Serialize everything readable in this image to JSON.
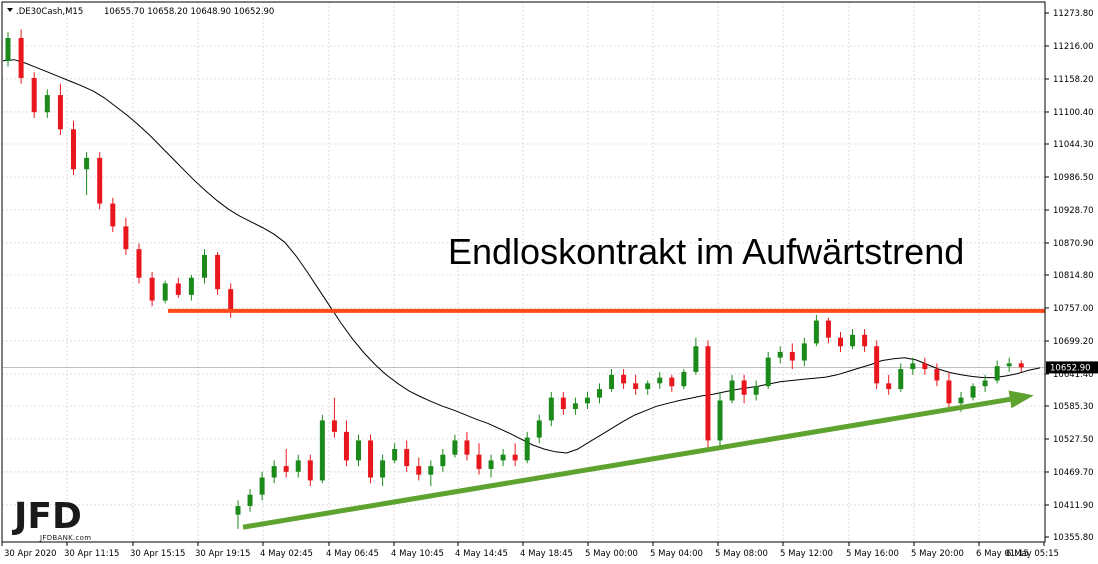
{
  "header": {
    "symbol": ".DE30Cash,M15",
    "ohlc": "10655.70 10658.20 10648.90 10652.90"
  },
  "annotation": "Endloskontrakt im Aufwärtstrend",
  "logo": {
    "text": "JFD",
    "subtext": "JFDBANK.com"
  },
  "current_price": {
    "label": "10652.90",
    "value": 10652.9,
    "color": "#000000"
  },
  "colors": {
    "bull": "#1b8a1b",
    "bear": "#e8161d",
    "ma": "#000000",
    "resistance": "#ff4a1c",
    "trend": "#5ea22f",
    "grid": "#c8c8c8",
    "frame": "#000000"
  },
  "chart_data": {
    "type": "candlestick",
    "title": "",
    "xlabel": "",
    "ylabel": "",
    "grid": true,
    "ylim": [
      10355.8,
      11273.8
    ],
    "y_ticks": [
      "11273.80",
      "11216.00",
      "11158.20",
      "11100.40",
      "11044.30",
      "10986.50",
      "10928.70",
      "10870.90",
      "10814.80",
      "10757.00",
      "10699.20",
      "10641.40",
      "10585.30",
      "10527.50",
      "10469.70",
      "10411.90",
      "10355.80"
    ],
    "y_tick_values": [
      11273.8,
      11216.0,
      11158.2,
      11100.4,
      11044.3,
      10986.5,
      10928.7,
      10870.9,
      10814.8,
      10757.0,
      10699.2,
      10641.4,
      10585.3,
      10527.5,
      10469.7,
      10411.9,
      10355.8
    ],
    "x_ticks": [
      "30 Apr 2020",
      "30 Apr 11:15",
      "30 Apr 15:15",
      "30 Apr 19:15",
      "4 May 02:45",
      "4 May 06:45",
      "4 May 10:45",
      "4 May 14:45",
      "4 May 18:45",
      "5 May 00:00",
      "5 May 04:00",
      "5 May 08:00",
      "5 May 12:00",
      "5 May 16:00",
      "5 May 20:00",
      "6 May 01:15",
      "6 May 05:15"
    ],
    "resistance_level": 10752,
    "trendline": {
      "start": [
        "4 May 00:00",
        10373
      ],
      "end": [
        "6 May 05:15",
        10597
      ]
    },
    "moving_average": [
      [
        0,
        11190
      ],
      [
        1,
        11192
      ],
      [
        2,
        11186
      ],
      [
        3,
        11178
      ],
      [
        4,
        11170
      ],
      [
        5,
        11162
      ],
      [
        6,
        11154
      ],
      [
        7,
        11146
      ],
      [
        8,
        11137
      ],
      [
        9,
        11125
      ],
      [
        10,
        11110
      ],
      [
        11,
        11095
      ],
      [
        12,
        11078
      ],
      [
        13,
        11060
      ],
      [
        14,
        11040
      ],
      [
        15,
        11020
      ],
      [
        16,
        11000
      ],
      [
        17,
        10980
      ],
      [
        18,
        10962
      ],
      [
        19,
        10945
      ],
      [
        20,
        10930
      ],
      [
        21,
        10918
      ],
      [
        22,
        10908
      ],
      [
        23,
        10898
      ],
      [
        24,
        10887
      ],
      [
        25,
        10872
      ],
      [
        26,
        10848
      ],
      [
        27,
        10820
      ],
      [
        28,
        10790
      ],
      [
        29,
        10760
      ],
      [
        30,
        10730
      ],
      [
        31,
        10703
      ],
      [
        32,
        10679
      ],
      [
        33,
        10658
      ],
      [
        34,
        10640
      ],
      [
        35,
        10625
      ],
      [
        36,
        10612
      ],
      [
        37,
        10602
      ],
      [
        38,
        10593
      ],
      [
        39,
        10585
      ],
      [
        40,
        10578
      ],
      [
        41,
        10570
      ],
      [
        42,
        10562
      ],
      [
        43,
        10555
      ],
      [
        44,
        10546
      ],
      [
        45,
        10537
      ],
      [
        46,
        10527
      ],
      [
        47,
        10517
      ],
      [
        48,
        10510
      ],
      [
        49,
        10505
      ],
      [
        50,
        10503
      ],
      [
        51,
        10510
      ],
      [
        52,
        10522
      ],
      [
        53,
        10534
      ],
      [
        54,
        10546
      ],
      [
        55,
        10558
      ],
      [
        56,
        10569
      ],
      [
        57,
        10577
      ],
      [
        58,
        10585
      ],
      [
        59,
        10590
      ],
      [
        60,
        10595
      ],
      [
        61,
        10599
      ],
      [
        62,
        10603
      ],
      [
        63,
        10606
      ],
      [
        64,
        10610
      ],
      [
        65,
        10614
      ],
      [
        66,
        10617
      ],
      [
        67,
        10620
      ],
      [
        68,
        10624
      ],
      [
        69,
        10628
      ],
      [
        70,
        10630
      ],
      [
        71,
        10632
      ],
      [
        72,
        10634
      ],
      [
        73,
        10636
      ],
      [
        74,
        10640
      ],
      [
        75,
        10646
      ],
      [
        76,
        10652
      ],
      [
        77,
        10658
      ],
      [
        78,
        10665
      ],
      [
        79,
        10668
      ],
      [
        80,
        10670
      ],
      [
        81,
        10666
      ],
      [
        82,
        10658
      ],
      [
        83,
        10650
      ],
      [
        84,
        10644
      ],
      [
        85,
        10640
      ],
      [
        86,
        10637
      ],
      [
        87,
        10635
      ],
      [
        88,
        10635
      ],
      [
        89,
        10638
      ],
      [
        90,
        10642
      ],
      [
        91,
        10648
      ],
      [
        92,
        10652
      ]
    ],
    "candles": [
      [
        0,
        11190,
        11240,
        11180,
        11230
      ],
      [
        1,
        11230,
        11245,
        11150,
        11160
      ],
      [
        2,
        11160,
        11170,
        11090,
        11100
      ],
      [
        3,
        11100,
        11140,
        11090,
        11130
      ],
      [
        4,
        11130,
        11150,
        11060,
        11070
      ],
      [
        5,
        11070,
        11085,
        10990,
        11000
      ],
      [
        6,
        11000,
        11030,
        10955,
        11020
      ],
      [
        7,
        11020,
        11030,
        10930,
        10940
      ],
      [
        8,
        10940,
        10950,
        10890,
        10900
      ],
      [
        9,
        10900,
        10915,
        10850,
        10860
      ],
      [
        10,
        10860,
        10870,
        10800,
        10810
      ],
      [
        11,
        10810,
        10820,
        10760,
        10770
      ],
      [
        12,
        10770,
        10805,
        10765,
        10800
      ],
      [
        13,
        10800,
        10810,
        10775,
        10780
      ],
      [
        14,
        10780,
        10815,
        10770,
        10810
      ],
      [
        15,
        10810,
        10860,
        10800,
        10850
      ],
      [
        16,
        10850,
        10855,
        10780,
        10790
      ],
      [
        17,
        10790,
        10800,
        10740,
        10750
      ],
      [
        18,
        10395,
        10420,
        10370,
        10410
      ],
      [
        19,
        10410,
        10440,
        10400,
        10430
      ],
      [
        20,
        10430,
        10470,
        10420,
        10460
      ],
      [
        21,
        10460,
        10490,
        10450,
        10480
      ],
      [
        22,
        10480,
        10510,
        10460,
        10470
      ],
      [
        23,
        10470,
        10500,
        10460,
        10490
      ],
      [
        24,
        10490,
        10500,
        10445,
        10455
      ],
      [
        25,
        10455,
        10570,
        10450,
        10560
      ],
      [
        26,
        10560,
        10600,
        10530,
        10540
      ],
      [
        27,
        10540,
        10560,
        10480,
        10490
      ],
      [
        28,
        10490,
        10535,
        10480,
        10525
      ],
      [
        29,
        10525,
        10535,
        10450,
        10460
      ],
      [
        30,
        10460,
        10500,
        10445,
        10490
      ],
      [
        31,
        10490,
        10520,
        10485,
        10510
      ],
      [
        32,
        10510,
        10525,
        10470,
        10480
      ],
      [
        33,
        10480,
        10495,
        10455,
        10465
      ],
      [
        34,
        10465,
        10490,
        10445,
        10480
      ],
      [
        35,
        10480,
        10510,
        10470,
        10500
      ],
      [
        36,
        10500,
        10535,
        10495,
        10525
      ],
      [
        37,
        10525,
        10540,
        10490,
        10500
      ],
      [
        38,
        10500,
        10520,
        10465,
        10475
      ],
      [
        39,
        10475,
        10500,
        10460,
        10490
      ],
      [
        40,
        10490,
        10510,
        10480,
        10500
      ],
      [
        41,
        10500,
        10520,
        10480,
        10490
      ],
      [
        42,
        10490,
        10540,
        10485,
        10530
      ],
      [
        43,
        10530,
        10570,
        10520,
        10560
      ],
      [
        44,
        10560,
        10610,
        10550,
        10600
      ],
      [
        45,
        10600,
        10610,
        10570,
        10580
      ],
      [
        46,
        10580,
        10600,
        10570,
        10590
      ],
      [
        47,
        10590,
        10610,
        10580,
        10600
      ],
      [
        48,
        10600,
        10625,
        10590,
        10615
      ],
      [
        49,
        10615,
        10650,
        10610,
        10640
      ],
      [
        50,
        10640,
        10650,
        10615,
        10625
      ],
      [
        51,
        10625,
        10640,
        10605,
        10615
      ],
      [
        52,
        10615,
        10630,
        10605,
        10625
      ],
      [
        53,
        10625,
        10645,
        10615,
        10635
      ],
      [
        54,
        10635,
        10640,
        10610,
        10620
      ],
      [
        55,
        10620,
        10650,
        10615,
        10645
      ],
      [
        56,
        10645,
        10705,
        10640,
        10690
      ],
      [
        57,
        10690,
        10700,
        10510,
        10525
      ],
      [
        58,
        10525,
        10610,
        10515,
        10595
      ],
      [
        59,
        10595,
        10640,
        10590,
        10630
      ],
      [
        60,
        10630,
        10640,
        10590,
        10605
      ],
      [
        61,
        10605,
        10630,
        10595,
        10620
      ],
      [
        62,
        10620,
        10680,
        10615,
        10670
      ],
      [
        63,
        10670,
        10690,
        10660,
        10680
      ],
      [
        64,
        10680,
        10695,
        10650,
        10665
      ],
      [
        65,
        10665,
        10705,
        10655,
        10695
      ],
      [
        66,
        10695,
        10745,
        10690,
        10735
      ],
      [
        67,
        10735,
        10740,
        10695,
        10705
      ],
      [
        68,
        10705,
        10715,
        10680,
        10690
      ],
      [
        69,
        10690,
        10720,
        10685,
        10710
      ],
      [
        70,
        10710,
        10720,
        10680,
        10690
      ],
      [
        71,
        10690,
        10700,
        10615,
        10625
      ],
      [
        72,
        10625,
        10640,
        10605,
        10615
      ],
      [
        73,
        10615,
        10660,
        10610,
        10650
      ],
      [
        74,
        10650,
        10670,
        10640,
        10660
      ],
      [
        75,
        10660,
        10670,
        10640,
        10650
      ],
      [
        76,
        10650,
        10660,
        10620,
        10630
      ],
      [
        77,
        10630,
        10645,
        10575,
        10590
      ],
      [
        78,
        10590,
        10610,
        10575,
        10600
      ],
      [
        79,
        10600,
        10625,
        10595,
        10620
      ],
      [
        80,
        10620,
        10640,
        10610,
        10630
      ],
      [
        81,
        10630,
        10665,
        10625,
        10655
      ],
      [
        82,
        10655,
        10670,
        10645,
        10660
      ],
      [
        83,
        10660,
        10665,
        10645,
        10653
      ]
    ]
  }
}
